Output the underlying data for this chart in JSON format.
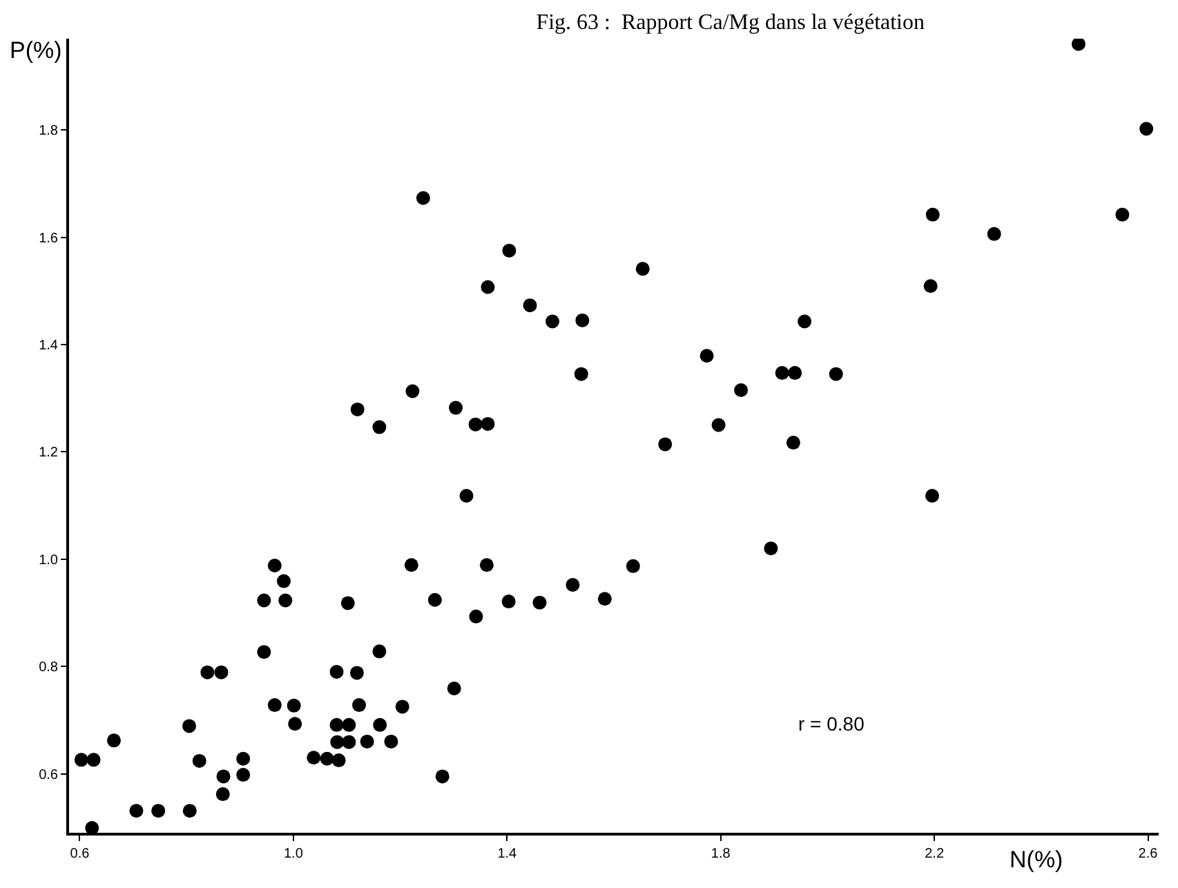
{
  "chart_data": {
    "type": "scatter",
    "title": "Fig. 63 :  Rapport Ca/Mg dans la végétation",
    "xlabel": "N(%)",
    "ylabel": "P(%)",
    "annotations": [
      "r = 0.80"
    ],
    "xlim": [
      0.58,
      2.62
    ],
    "ylim": [
      0.49,
      1.97
    ],
    "xticks": [
      0.6,
      {
        "value": 1.0,
        "label": "1.0"
      },
      1.4,
      1.8,
      2.2,
      2.6
    ],
    "yticks": [
      0.6,
      0.8,
      {
        "value": 1.0,
        "label": "1.0"
      },
      1.2,
      1.4,
      1.6,
      1.8
    ],
    "grid": false,
    "marker": "circle",
    "series": [
      {
        "color": "#000000",
        "x": [
          0.603,
          0.626,
          0.664,
          0.623,
          0.706,
          0.747,
          0.806,
          0.805,
          0.824,
          0.839,
          0.865,
          0.868,
          0.869,
          0.906,
          0.906,
          0.945,
          0.945,
          0.965,
          0.982,
          0.985,
          0.965,
          1.001,
          1.003,
          1.038,
          1.063,
          1.085,
          1.081,
          1.081,
          1.082,
          1.104,
          1.104,
          1.102,
          1.119,
          1.123,
          1.162,
          1.138,
          1.183,
          1.161,
          1.204,
          1.221,
          1.265,
          1.301,
          1.279,
          1.324,
          1.362,
          1.342,
          1.403,
          1.461,
          1.523,
          1.583,
          1.636,
          1.243,
          1.404,
          1.364,
          1.443,
          1.485,
          1.541,
          1.654,
          1.774,
          1.539,
          1.223,
          1.12,
          1.161,
          1.304,
          1.341,
          1.364,
          1.696,
          1.796,
          2.47,
          2.597,
          2.552,
          2.197,
          2.312,
          2.193,
          1.957,
          1.915,
          1.939,
          2.016,
          1.838,
          1.936,
          2.196,
          1.894
        ],
        "values": [
          0.626,
          0.626,
          0.662,
          0.499,
          0.531,
          0.531,
          0.531,
          0.689,
          0.624,
          0.789,
          0.789,
          0.562,
          0.595,
          0.628,
          0.598,
          0.923,
          0.827,
          0.988,
          0.959,
          0.923,
          0.728,
          0.727,
          0.693,
          0.63,
          0.628,
          0.625,
          0.79,
          0.691,
          0.659,
          0.691,
          0.659,
          0.918,
          0.788,
          0.728,
          0.691,
          0.66,
          0.66,
          0.828,
          0.725,
          0.989,
          0.924,
          0.759,
          0.595,
          1.118,
          0.989,
          0.893,
          0.921,
          0.919,
          0.952,
          0.926,
          0.987,
          1.673,
          1.575,
          1.507,
          1.473,
          1.443,
          1.445,
          1.541,
          1.379,
          1.345,
          1.313,
          1.279,
          1.246,
          1.282,
          1.251,
          1.252,
          1.214,
          1.25,
          1.96,
          1.802,
          1.642,
          1.642,
          1.606,
          1.509,
          1.443,
          1.347,
          1.347,
          1.345,
          1.315,
          1.217,
          1.118,
          1.02
        ]
      }
    ]
  }
}
